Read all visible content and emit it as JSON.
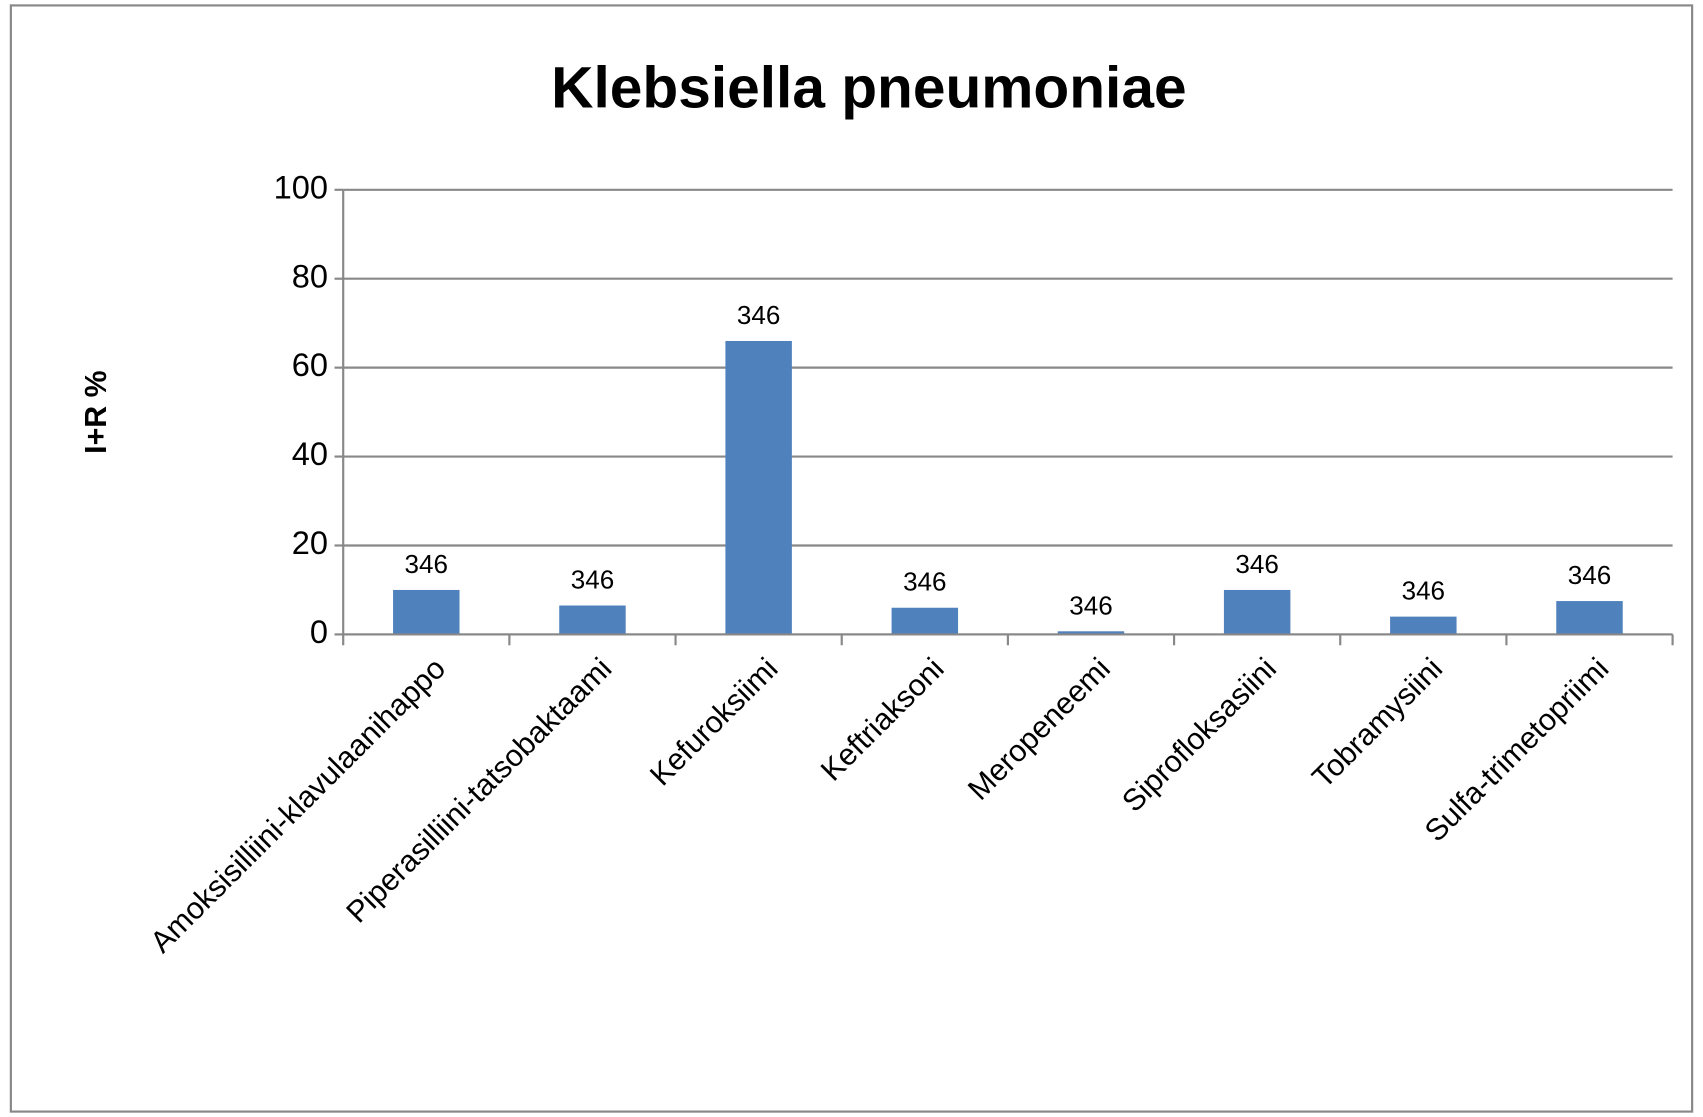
{
  "chart_data": {
    "type": "bar",
    "title": "Klebsiella pneumoniae",
    "y_label": "I+R %",
    "categories": [
      "Amoksisilliini-klavulaanihappo",
      "Piperasilliini-tatsobaktaami",
      "Kefuroksiimi",
      "Keftriaksoni",
      "Meropeneemi",
      "Siprofloksasiini",
      "Tobramysiini",
      "Sulfa-trimetopriimi"
    ],
    "values": [
      10,
      6.5,
      66,
      6,
      0.7,
      10,
      4,
      7.5
    ],
    "data_labels": [
      346,
      346,
      346,
      346,
      346,
      346,
      346,
      346
    ],
    "color": "#4f81bd",
    "ylim": [
      0,
      100
    ],
    "yticks": [
      0,
      20,
      40,
      60,
      80,
      100
    ],
    "grid": true
  }
}
